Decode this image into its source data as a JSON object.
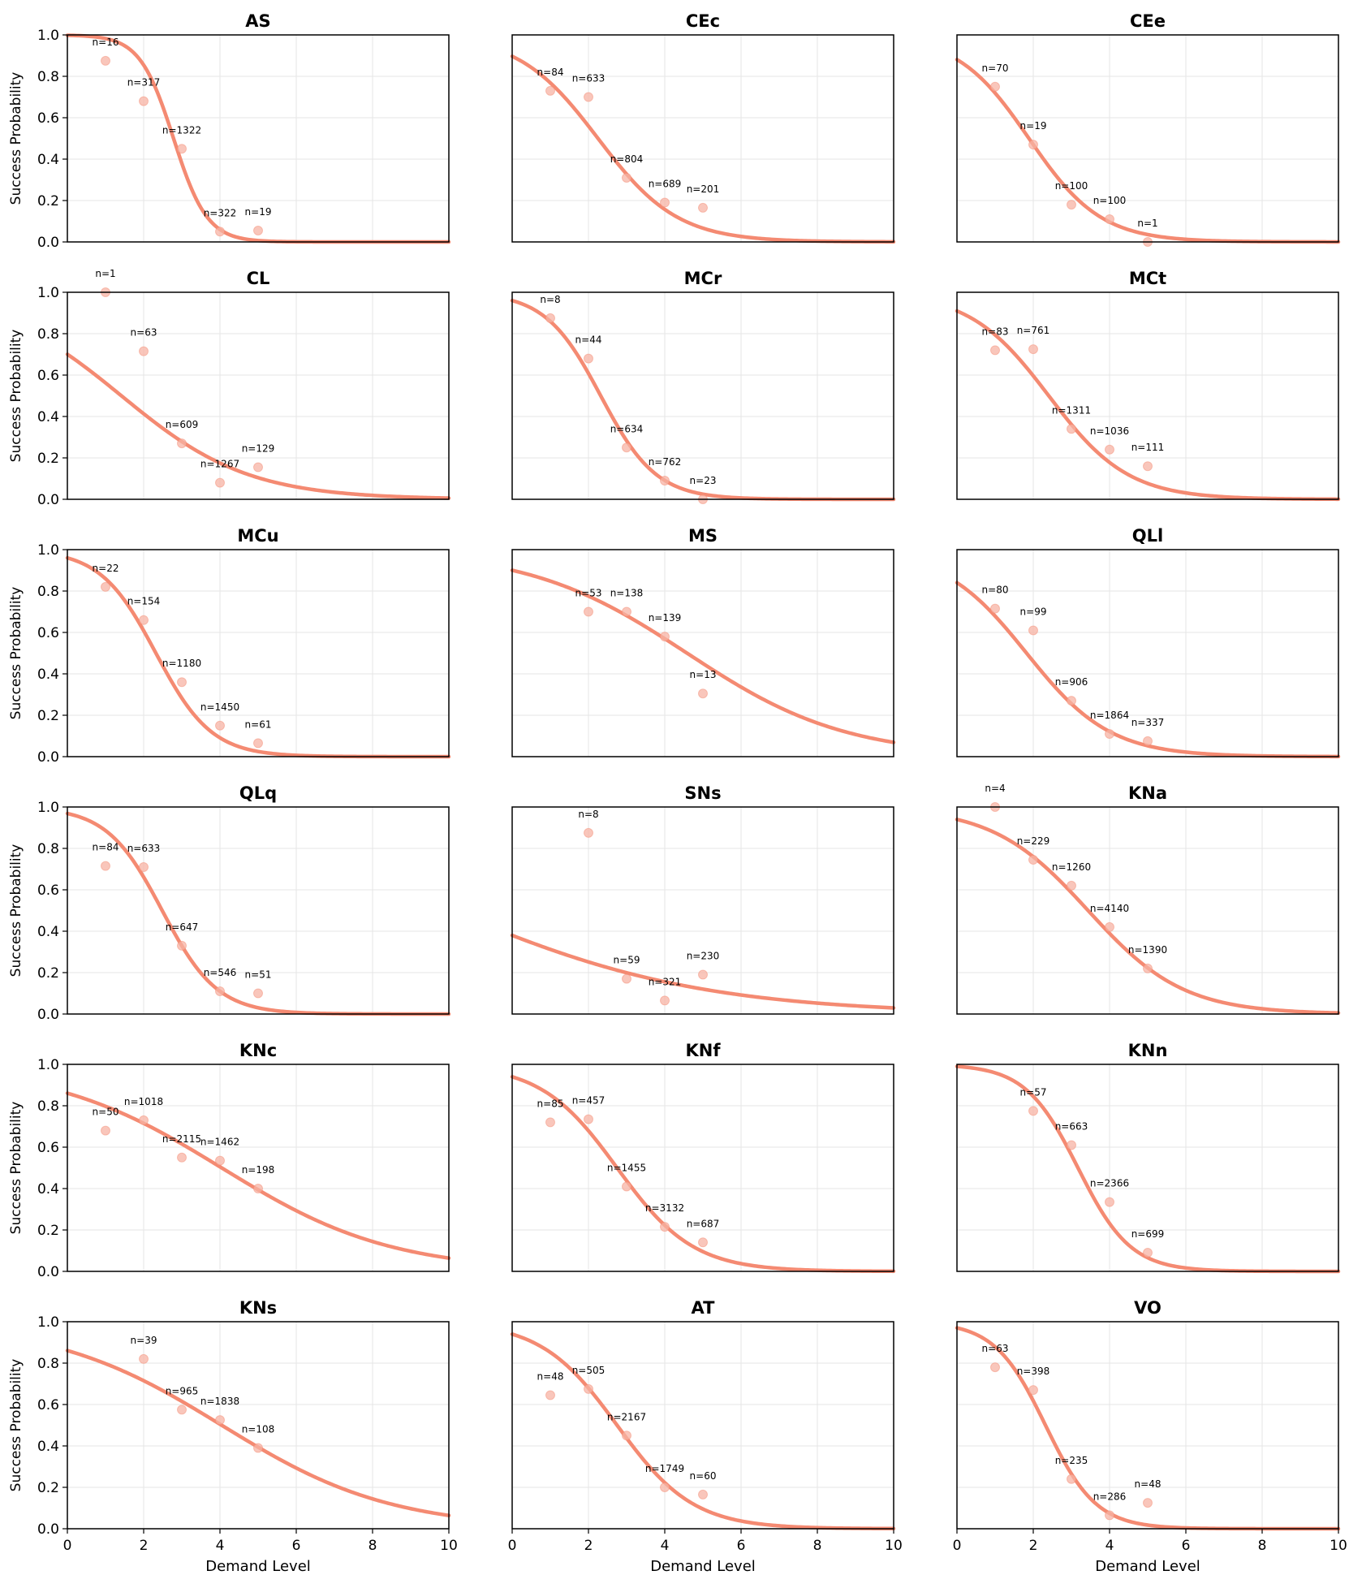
{
  "figure": {
    "xlabel": "Demand Level",
    "ylabel": "Success Probability",
    "colors": {
      "curve": "#f48a72",
      "point": "#f7b3a4",
      "grid": "#e6e6e6",
      "axis": "#000000"
    }
  },
  "chart_data": [
    {
      "type": "scatter",
      "title": "AS",
      "xlim": [
        0,
        10
      ],
      "ylim": [
        0,
        1
      ],
      "xticks": [
        "0",
        "2",
        "4",
        "6",
        "8",
        "10"
      ],
      "yticks": [
        "0.0",
        "0.2",
        "0.4",
        "0.6",
        "0.8",
        "1.0"
      ],
      "curve": {
        "a": 6.29,
        "b": 2.26
      },
      "points": [
        {
          "x": 1,
          "y": 0.875,
          "n": "n=16"
        },
        {
          "x": 2,
          "y": 0.68,
          "n": "n=317"
        },
        {
          "x": 3,
          "y": 0.45,
          "n": "n=1322"
        },
        {
          "x": 4,
          "y": 0.05,
          "n": "n=322"
        },
        {
          "x": 5,
          "y": 0.055,
          "n": "n=19"
        }
      ]
    },
    {
      "type": "scatter",
      "title": "CEc",
      "xlim": [
        0,
        10
      ],
      "ylim": [
        0,
        1
      ],
      "xticks": [
        "0",
        "2",
        "4",
        "6",
        "8",
        "10"
      ],
      "yticks": [
        "0.0",
        "0.2",
        "0.4",
        "0.6",
        "0.8",
        "1.0"
      ],
      "curve": {
        "a": 2.16,
        "b": 0.96
      },
      "points": [
        {
          "x": 1,
          "y": 0.73,
          "n": "n=84"
        },
        {
          "x": 2,
          "y": 0.7,
          "n": "n=633"
        },
        {
          "x": 3,
          "y": 0.31,
          "n": "n=804"
        },
        {
          "x": 4,
          "y": 0.19,
          "n": "n=689"
        },
        {
          "x": 5,
          "y": 0.165,
          "n": "n=201"
        }
      ]
    },
    {
      "type": "scatter",
      "title": "CEe",
      "xlim": [
        0,
        10
      ],
      "ylim": [
        0,
        1
      ],
      "xticks": [
        "0",
        "2",
        "4",
        "6",
        "8",
        "10"
      ],
      "yticks": [
        "0.0",
        "0.2",
        "0.4",
        "0.6",
        "0.8",
        "1.0"
      ],
      "curve": {
        "a": 2.0,
        "b": 1.06
      },
      "points": [
        {
          "x": 1,
          "y": 0.75,
          "n": "n=70"
        },
        {
          "x": 2,
          "y": 0.47,
          "n": "n=19"
        },
        {
          "x": 3,
          "y": 0.18,
          "n": "n=100"
        },
        {
          "x": 4,
          "y": 0.11,
          "n": "n=100"
        },
        {
          "x": 5,
          "y": 0.0,
          "n": "n=1"
        }
      ]
    },
    {
      "type": "scatter",
      "title": "CL",
      "xlim": [
        0,
        10
      ],
      "ylim": [
        0,
        1
      ],
      "xticks": [
        "0",
        "2",
        "4",
        "6",
        "8",
        "10"
      ],
      "yticks": [
        "0.0",
        "0.2",
        "0.4",
        "0.6",
        "0.8",
        "1.0"
      ],
      "curve": {
        "a": 0.85,
        "b": 0.6
      },
      "points": [
        {
          "x": 1,
          "y": 1.0,
          "n": "n=1"
        },
        {
          "x": 2,
          "y": 0.715,
          "n": "n=63"
        },
        {
          "x": 3,
          "y": 0.27,
          "n": "n=609"
        },
        {
          "x": 4,
          "y": 0.08,
          "n": "n=1267"
        },
        {
          "x": 5,
          "y": 0.155,
          "n": "n=129"
        }
      ]
    },
    {
      "type": "scatter",
      "title": "MCr",
      "xlim": [
        0,
        10
      ],
      "ylim": [
        0,
        1
      ],
      "xticks": [
        "0",
        "2",
        "4",
        "6",
        "8",
        "10"
      ],
      "yticks": [
        "0.0",
        "0.2",
        "0.4",
        "0.6",
        "0.8",
        "1.0"
      ],
      "curve": {
        "a": 3.18,
        "b": 1.37
      },
      "points": [
        {
          "x": 1,
          "y": 0.875,
          "n": "n=8"
        },
        {
          "x": 2,
          "y": 0.68,
          "n": "n=44"
        },
        {
          "x": 3,
          "y": 0.25,
          "n": "n=634"
        },
        {
          "x": 4,
          "y": 0.09,
          "n": "n=762"
        },
        {
          "x": 5,
          "y": 0.0,
          "n": "n=23"
        }
      ]
    },
    {
      "type": "scatter",
      "title": "MCt",
      "xlim": [
        0,
        10
      ],
      "ylim": [
        0,
        1
      ],
      "xticks": [
        "0",
        "2",
        "4",
        "6",
        "8",
        "10"
      ],
      "yticks": [
        "0.0",
        "0.2",
        "0.4",
        "0.6",
        "0.8",
        "1.0"
      ],
      "curve": {
        "a": 2.31,
        "b": 0.96
      },
      "points": [
        {
          "x": 1,
          "y": 0.72,
          "n": "n=83"
        },
        {
          "x": 2,
          "y": 0.725,
          "n": "n=761"
        },
        {
          "x": 3,
          "y": 0.34,
          "n": "n=1311"
        },
        {
          "x": 4,
          "y": 0.24,
          "n": "n=1036"
        },
        {
          "x": 5,
          "y": 0.16,
          "n": "n=111"
        }
      ]
    },
    {
      "type": "scatter",
      "title": "MCu",
      "xlim": [
        0,
        10
      ],
      "ylim": [
        0,
        1
      ],
      "xticks": [
        "0",
        "2",
        "4",
        "6",
        "8",
        "10"
      ],
      "yticks": [
        "0.0",
        "0.2",
        "0.4",
        "0.6",
        "0.8",
        "1.0"
      ],
      "curve": {
        "a": 3.18,
        "b": 1.37
      },
      "points": [
        {
          "x": 1,
          "y": 0.82,
          "n": "n=22"
        },
        {
          "x": 2,
          "y": 0.66,
          "n": "n=154"
        },
        {
          "x": 3,
          "y": 0.36,
          "n": "n=1180"
        },
        {
          "x": 4,
          "y": 0.15,
          "n": "n=1450"
        },
        {
          "x": 5,
          "y": 0.065,
          "n": "n=61"
        }
      ]
    },
    {
      "type": "scatter",
      "title": "MS",
      "xlim": [
        0,
        10
      ],
      "ylim": [
        0,
        1
      ],
      "xticks": [
        "0",
        "2",
        "4",
        "6",
        "8",
        "10"
      ],
      "yticks": [
        "0.0",
        "0.2",
        "0.4",
        "0.6",
        "0.8",
        "1.0"
      ],
      "curve": {
        "a": 2.2,
        "b": 0.48
      },
      "points": [
        {
          "x": 2,
          "y": 0.7,
          "n": "n=53"
        },
        {
          "x": 3,
          "y": 0.7,
          "n": "n=138"
        },
        {
          "x": 4,
          "y": 0.58,
          "n": "n=139"
        },
        {
          "x": 5,
          "y": 0.305,
          "n": "n=13"
        }
      ]
    },
    {
      "type": "scatter",
      "title": "QLl",
      "xlim": [
        0,
        10
      ],
      "ylim": [
        0,
        1
      ],
      "xticks": [
        "0",
        "2",
        "4",
        "6",
        "8",
        "10"
      ],
      "yticks": [
        "0.0",
        "0.2",
        "0.4",
        "0.6",
        "0.8",
        "1.0"
      ],
      "curve": {
        "a": 1.66,
        "b": 0.91
      },
      "points": [
        {
          "x": 1,
          "y": 0.715,
          "n": "n=80"
        },
        {
          "x": 2,
          "y": 0.61,
          "n": "n=99"
        },
        {
          "x": 3,
          "y": 0.27,
          "n": "n=906"
        },
        {
          "x": 4,
          "y": 0.11,
          "n": "n=1864"
        },
        {
          "x": 5,
          "y": 0.075,
          "n": "n=337"
        }
      ]
    },
    {
      "type": "scatter",
      "title": "QLq",
      "xlim": [
        0,
        10
      ],
      "ylim": [
        0,
        1
      ],
      "xticks": [
        "0",
        "2",
        "4",
        "6",
        "8",
        "10"
      ],
      "yticks": [
        "0.0",
        "0.2",
        "0.4",
        "0.6",
        "0.8",
        "1.0"
      ],
      "curve": {
        "a": 3.43,
        "b": 1.38
      },
      "points": [
        {
          "x": 1,
          "y": 0.715,
          "n": "n=84"
        },
        {
          "x": 2,
          "y": 0.71,
          "n": "n=633"
        },
        {
          "x": 3,
          "y": 0.33,
          "n": "n=647"
        },
        {
          "x": 4,
          "y": 0.11,
          "n": "n=546"
        },
        {
          "x": 5,
          "y": 0.1,
          "n": "n=51"
        }
      ]
    },
    {
      "type": "scatter",
      "title": "SNs",
      "xlim": [
        0,
        10
      ],
      "ylim": [
        0,
        1
      ],
      "xticks": [
        "0",
        "2",
        "4",
        "6",
        "8",
        "10"
      ],
      "yticks": [
        "0.0",
        "0.2",
        "0.4",
        "0.6",
        "0.8",
        "1.0"
      ],
      "curve": {
        "a": -0.49,
        "b": 0.3
      },
      "points": [
        {
          "x": 2,
          "y": 0.875,
          "n": "n=8"
        },
        {
          "x": 3,
          "y": 0.17,
          "n": "n=59"
        },
        {
          "x": 4,
          "y": 0.065,
          "n": "n=321"
        },
        {
          "x": 5,
          "y": 0.19,
          "n": "n=230"
        }
      ]
    },
    {
      "type": "scatter",
      "title": "KNa",
      "xlim": [
        0,
        10
      ],
      "ylim": [
        0,
        1
      ],
      "xticks": [
        "0",
        "2",
        "4",
        "6",
        "8",
        "10"
      ],
      "yticks": [
        "0.0",
        "0.2",
        "0.4",
        "0.6",
        "0.8",
        "1.0"
      ],
      "curve": {
        "a": 2.75,
        "b": 0.8
      },
      "points": [
        {
          "x": 1,
          "y": 1.0,
          "n": "n=4"
        },
        {
          "x": 2,
          "y": 0.745,
          "n": "n=229"
        },
        {
          "x": 3,
          "y": 0.62,
          "n": "n=1260"
        },
        {
          "x": 4,
          "y": 0.42,
          "n": "n=4140"
        },
        {
          "x": 5,
          "y": 0.22,
          "n": "n=1390"
        }
      ]
    },
    {
      "type": "scatter",
      "title": "KNc",
      "xlim": [
        0,
        10
      ],
      "ylim": [
        0,
        1
      ],
      "xticks": [
        "0",
        "2",
        "4",
        "6",
        "8",
        "10"
      ],
      "yticks": [
        "0.0",
        "0.2",
        "0.4",
        "0.6",
        "0.8",
        "1.0"
      ],
      "curve": {
        "a": 1.82,
        "b": 0.45
      },
      "points": [
        {
          "x": 1,
          "y": 0.68,
          "n": "n=50"
        },
        {
          "x": 2,
          "y": 0.73,
          "n": "n=1018"
        },
        {
          "x": 3,
          "y": 0.55,
          "n": "n=2115"
        },
        {
          "x": 4,
          "y": 0.535,
          "n": "n=1462"
        },
        {
          "x": 5,
          "y": 0.4,
          "n": "n=198"
        }
      ]
    },
    {
      "type": "scatter",
      "title": "KNf",
      "xlim": [
        0,
        10
      ],
      "ylim": [
        0,
        1
      ],
      "xticks": [
        "0",
        "2",
        "4",
        "6",
        "8",
        "10"
      ],
      "yticks": [
        "0.0",
        "0.2",
        "0.4",
        "0.6",
        "0.8",
        "1.0"
      ],
      "curve": {
        "a": 2.75,
        "b": 1.0
      },
      "points": [
        {
          "x": 1,
          "y": 0.72,
          "n": "n=85"
        },
        {
          "x": 2,
          "y": 0.735,
          "n": "n=457"
        },
        {
          "x": 3,
          "y": 0.41,
          "n": "n=1455"
        },
        {
          "x": 4,
          "y": 0.215,
          "n": "n=3132"
        },
        {
          "x": 5,
          "y": 0.14,
          "n": "n=687"
        }
      ]
    },
    {
      "type": "scatter",
      "title": "KNn",
      "xlim": [
        0,
        10
      ],
      "ylim": [
        0,
        1
      ],
      "xticks": [
        "0",
        "2",
        "4",
        "6",
        "8",
        "10"
      ],
      "yticks": [
        "0.0",
        "0.2",
        "0.4",
        "0.6",
        "0.8",
        "1.0"
      ],
      "curve": {
        "a": 4.6,
        "b": 1.45
      },
      "points": [
        {
          "x": 2,
          "y": 0.775,
          "n": "n=57"
        },
        {
          "x": 3,
          "y": 0.61,
          "n": "n=663"
        },
        {
          "x": 4,
          "y": 0.335,
          "n": "n=2366"
        },
        {
          "x": 5,
          "y": 0.09,
          "n": "n=699"
        }
      ]
    },
    {
      "type": "scatter",
      "title": "KNs",
      "xlim": [
        0,
        10
      ],
      "ylim": [
        0,
        1
      ],
      "xticks": [
        "0",
        "2",
        "4",
        "6",
        "8",
        "10"
      ],
      "yticks": [
        "0.0",
        "0.2",
        "0.4",
        "0.6",
        "0.8",
        "1.0"
      ],
      "curve": {
        "a": 1.82,
        "b": 0.45
      },
      "points": [
        {
          "x": 2,
          "y": 0.82,
          "n": "n=39"
        },
        {
          "x": 3,
          "y": 0.575,
          "n": "n=965"
        },
        {
          "x": 4,
          "y": 0.525,
          "n": "n=1838"
        },
        {
          "x": 5,
          "y": 0.39,
          "n": "n=108"
        }
      ]
    },
    {
      "type": "scatter",
      "title": "AT",
      "xlim": [
        0,
        10
      ],
      "ylim": [
        0,
        1
      ],
      "xticks": [
        "0",
        "2",
        "4",
        "6",
        "8",
        "10"
      ],
      "yticks": [
        "0.0",
        "0.2",
        "0.4",
        "0.6",
        "0.8",
        "1.0"
      ],
      "curve": {
        "a": 2.75,
        "b": 1.0
      },
      "points": [
        {
          "x": 1,
          "y": 0.645,
          "n": "n=48"
        },
        {
          "x": 2,
          "y": 0.675,
          "n": "n=505"
        },
        {
          "x": 3,
          "y": 0.45,
          "n": "n=2167"
        },
        {
          "x": 4,
          "y": 0.2,
          "n": "n=1749"
        },
        {
          "x": 5,
          "y": 0.165,
          "n": "n=60"
        }
      ]
    },
    {
      "type": "scatter",
      "title": "VO",
      "xlim": [
        0,
        10
      ],
      "ylim": [
        0,
        1
      ],
      "xticks": [
        "0",
        "2",
        "4",
        "6",
        "8",
        "10"
      ],
      "yticks": [
        "0.0",
        "0.2",
        "0.4",
        "0.6",
        "0.8",
        "1.0"
      ],
      "curve": {
        "a": 3.48,
        "b": 1.5
      },
      "points": [
        {
          "x": 1,
          "y": 0.78,
          "n": "n=63"
        },
        {
          "x": 2,
          "y": 0.67,
          "n": "n=398"
        },
        {
          "x": 3,
          "y": 0.24,
          "n": "n=235"
        },
        {
          "x": 4,
          "y": 0.065,
          "n": "n=286"
        },
        {
          "x": 5,
          "y": 0.125,
          "n": "n=48"
        }
      ]
    }
  ]
}
